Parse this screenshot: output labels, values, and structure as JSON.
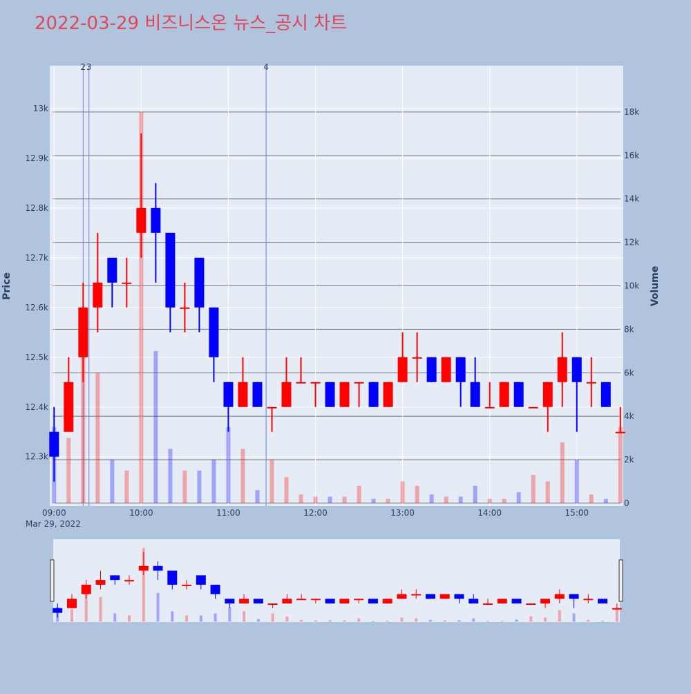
{
  "chart_data": {
    "type": "candlestick",
    "title": "2022-03-29 비즈니스온 뉴스_공시 차트",
    "y_title": "Price",
    "y2_title": "Volume",
    "x_date_label": "Mar 29, 2022",
    "up_color": "#ff0000",
    "down_color": "#0000ff",
    "x": [
      "2022-03-29 09:00",
      "2022-03-29 09:10",
      "2022-03-29 09:20",
      "2022-03-29 09:30",
      "2022-03-29 09:40",
      "2022-03-29 09:50",
      "2022-03-29 10:00",
      "2022-03-29 10:10",
      "2022-03-29 10:20",
      "2022-03-29 10:30",
      "2022-03-29 10:40",
      "2022-03-29 10:50",
      "2022-03-29 11:00",
      "2022-03-29 11:10",
      "2022-03-29 11:20",
      "2022-03-29 11:30",
      "2022-03-29 11:40",
      "2022-03-29 11:50",
      "2022-03-29 12:00",
      "2022-03-29 12:10",
      "2022-03-29 12:20",
      "2022-03-29 12:30",
      "2022-03-29 12:40",
      "2022-03-29 12:50",
      "2022-03-29 13:00",
      "2022-03-29 13:10",
      "2022-03-29 13:20",
      "2022-03-29 13:30",
      "2022-03-29 13:40",
      "2022-03-29 13:50",
      "2022-03-29 14:00",
      "2022-03-29 14:10",
      "2022-03-29 14:20",
      "2022-03-29 14:30",
      "2022-03-29 14:40",
      "2022-03-29 14:50",
      "2022-03-29 15:00",
      "2022-03-29 15:10",
      "2022-03-29 15:20",
      "2022-03-29 15:30"
    ],
    "open": [
      12350,
      12350,
      12500,
      12600,
      12700,
      12650,
      12750,
      12800,
      12750,
      12600,
      12700,
      12600,
      12450,
      12400,
      12450,
      12400,
      12400,
      12450,
      12450,
      12450,
      12400,
      12450,
      12450,
      12400,
      12450,
      12500,
      12500,
      12450,
      12500,
      12450,
      12400,
      12400,
      12450,
      12400,
      12400,
      12450,
      12500,
      12450,
      12450,
      12350
    ],
    "high": [
      12400,
      12500,
      12650,
      12750,
      12700,
      12700,
      12950,
      12850,
      12750,
      12650,
      12700,
      12600,
      12450,
      12500,
      12450,
      12400,
      12500,
      12500,
      12450,
      12450,
      12450,
      12450,
      12450,
      12450,
      12550,
      12550,
      12500,
      12500,
      12500,
      12500,
      12450,
      12450,
      12450,
      12400,
      12450,
      12550,
      12500,
      12500,
      12450,
      12400
    ],
    "low": [
      12250,
      12350,
      12450,
      12550,
      12600,
      12600,
      12700,
      12650,
      12550,
      12550,
      12550,
      12450,
      12350,
      12400,
      12400,
      12350,
      12400,
      12450,
      12400,
      12400,
      12400,
      12400,
      12400,
      12400,
      12450,
      12450,
      12450,
      12450,
      12400,
      12400,
      12400,
      12400,
      12400,
      12400,
      12350,
      12400,
      12350,
      12400,
      12400,
      12350
    ],
    "close": [
      12300,
      12450,
      12600,
      12650,
      12650,
      12650,
      12800,
      12750,
      12600,
      12600,
      12600,
      12500,
      12400,
      12450,
      12400,
      12400,
      12450,
      12450,
      12450,
      12400,
      12450,
      12450,
      12400,
      12450,
      12500,
      12500,
      12450,
      12500,
      12450,
      12400,
      12400,
      12450,
      12400,
      12400,
      12450,
      12500,
      12450,
      12450,
      12400,
      12350
    ],
    "volume": [
      3500,
      3000,
      8000,
      6000,
      2000,
      1500,
      18000,
      7000,
      2500,
      1500,
      1500,
      2000,
      3500,
      2500,
      600,
      2000,
      1200,
      400,
      300,
      300,
      300,
      800,
      200,
      200,
      1000,
      800,
      400,
      300,
      300,
      800,
      200,
      200,
      500,
      1300,
      1000,
      2800,
      2000,
      400,
      200,
      3500
    ],
    "xlim": [
      "2022-03-29 08:57",
      "2022-03-29 15:32"
    ],
    "xticks": [
      {
        "value": "2022-03-29 09:00",
        "label": "09:00"
      },
      {
        "value": "2022-03-29 10:00",
        "label": "10:00"
      },
      {
        "value": "2022-03-29 11:00",
        "label": "11:00"
      },
      {
        "value": "2022-03-29 12:00",
        "label": "12:00"
      },
      {
        "value": "2022-03-29 13:00",
        "label": "13:00"
      },
      {
        "value": "2022-03-29 14:00",
        "label": "14:00"
      },
      {
        "value": "2022-03-29 15:00",
        "label": "15:00"
      }
    ],
    "ylim": [
      12201,
      13086
    ],
    "yticks": [
      {
        "value": 12300,
        "label": "12.3k"
      },
      {
        "value": 12400,
        "label": "12.4k"
      },
      {
        "value": 12500,
        "label": "12.5k"
      },
      {
        "value": 12600,
        "label": "12.6k"
      },
      {
        "value": 12700,
        "label": "12.7k"
      },
      {
        "value": 12800,
        "label": "12.8k"
      },
      {
        "value": 12900,
        "label": "12.9k"
      },
      {
        "value": 13000,
        "label": "13k"
      }
    ],
    "y2lim": [
      -130,
      20130
    ],
    "y2ticks": [
      0,
      {
        "value": 2000,
        "label": "2k"
      },
      {
        "value": 4000,
        "label": "4k"
      },
      {
        "value": 6000,
        "label": "6k"
      },
      {
        "value": 8000,
        "label": "8k"
      },
      {
        "value": 10000,
        "label": "10k"
      },
      {
        "value": 12000,
        "label": "12k"
      },
      {
        "value": 14000,
        "label": "14k"
      },
      {
        "value": 16000,
        "label": "16k"
      },
      {
        "value": 18000,
        "label": "18k"
      }
    ],
    "annotations": [
      {
        "x": "2022-03-29 09:20",
        "label": "2"
      },
      {
        "x": "2022-03-29 09:24",
        "label": "3"
      },
      {
        "x": "2022-03-29 11:26",
        "label": "4"
      }
    ]
  }
}
